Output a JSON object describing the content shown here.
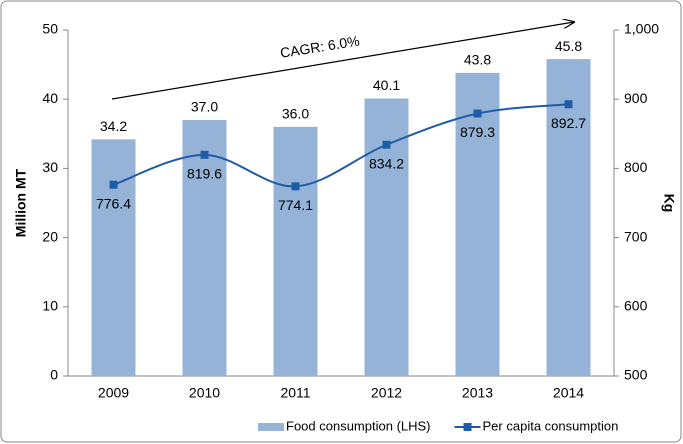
{
  "chart_data": {
    "type": "bar",
    "categories": [
      "2009",
      "2010",
      "2011",
      "2012",
      "2013",
      "2014"
    ],
    "series": [
      {
        "name": "Food consumption (LHS)",
        "color": "#95b3d7",
        "values": [
          34.2,
          37.0,
          36.0,
          40.1,
          43.8,
          45.8
        ],
        "value_labels": [
          "34.2",
          "37.0",
          "36.0",
          "40.1",
          "43.8",
          "45.8"
        ]
      },
      {
        "name": "Per capita consumption",
        "color": "#1f5ca8",
        "type": "line",
        "axis": "y2",
        "values": [
          776.4,
          819.6,
          774.1,
          834.2,
          879.3,
          892.7
        ]
      }
    ],
    "ylabel": "Million MT",
    "y2label": "Kg",
    "ylim": [
      0,
      50
    ],
    "yticks": [
      0,
      10,
      20,
      30,
      40,
      50
    ],
    "y2lim": [
      500,
      1000
    ],
    "y2ticks": [
      500,
      600,
      700,
      800,
      900,
      {
        "value": 1000,
        "label": "1,000"
      }
    ],
    "annotation": "CAGR: 6.0%",
    "legend": "bottom"
  }
}
